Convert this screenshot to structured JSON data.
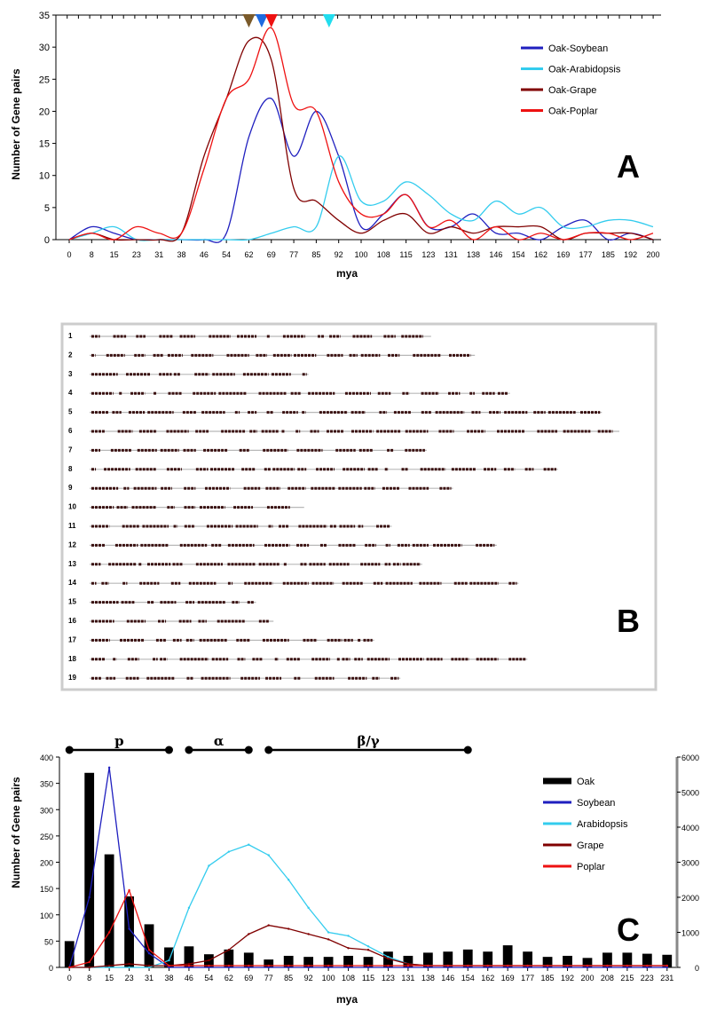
{
  "chart_data": [
    {
      "type": "line",
      "panel_label": "A",
      "xlabel": "mya",
      "ylabel": "Number of Gene pairs",
      "ylim": [
        0,
        35
      ],
      "yticks": [
        "0",
        "5",
        "10",
        "15",
        "20",
        "25",
        "30",
        "35"
      ],
      "categories": [
        "0",
        "8",
        "15",
        "23",
        "31",
        "38",
        "46",
        "54",
        "62",
        "69",
        "77",
        "85",
        "92",
        "100",
        "108",
        "115",
        "123",
        "131",
        "138",
        "146",
        "154",
        "162",
        "169",
        "177",
        "185",
        "192",
        "200"
      ],
      "legend_position": "top-right",
      "series": [
        {
          "name": "Oak-Soybean",
          "color": "#1f1fbf",
          "values": [
            0,
            2,
            1,
            0,
            0,
            0,
            0,
            1,
            16,
            22,
            13,
            20,
            13,
            2,
            4,
            7,
            2,
            2,
            4,
            1,
            1,
            0,
            2,
            3,
            0,
            1,
            0
          ]
        },
        {
          "name": "Oak-Arabidopsis",
          "color": "#33ccee",
          "values": [
            0,
            1,
            2,
            0,
            0,
            0,
            0,
            0,
            0,
            1,
            2,
            2,
            13,
            6,
            6,
            9,
            7,
            4,
            3,
            6,
            4,
            5,
            2,
            2,
            3,
            3,
            2
          ]
        },
        {
          "name": "Oak-Grape",
          "color": "#800000",
          "values": [
            0,
            1,
            0,
            0,
            0,
            1,
            13,
            22,
            31,
            28,
            8,
            6,
            3,
            1,
            3,
            4,
            1,
            2,
            1,
            2,
            2,
            2,
            0,
            1,
            1,
            1,
            0
          ]
        },
        {
          "name": "Oak-Poplar",
          "color": "#ee1111",
          "values": [
            0,
            1,
            0,
            2,
            1,
            1,
            11,
            22,
            25,
            33,
            21,
            20,
            9,
            4,
            4,
            7,
            2,
            3,
            0,
            2,
            0,
            1,
            0,
            1,
            1,
            0,
            1
          ]
        }
      ],
      "markers": [
        {
          "x": "62",
          "color": "#7a5a2a"
        },
        {
          "x": "66",
          "color": "#1e6ae0"
        },
        {
          "x": "69",
          "color": "#ee1111"
        },
        {
          "x": "89",
          "color": "#22ddee"
        }
      ]
    },
    {
      "type": "diagram",
      "panel_label": "B",
      "chromosomes": [
        "1",
        "2",
        "3",
        "4",
        "5",
        "6",
        "7",
        "8",
        "9",
        "10",
        "11",
        "12",
        "13",
        "14",
        "15",
        "16",
        "17",
        "18",
        "19"
      ],
      "relative_lengths": [
        0.78,
        0.88,
        0.5,
        0.96,
        1.17,
        1.21,
        0.77,
        1.07,
        0.83,
        0.49,
        0.69,
        0.93,
        0.76,
        0.98,
        0.38,
        0.42,
        0.65,
        1.0,
        0.71
      ]
    },
    {
      "type": "bar",
      "panel_label": "C",
      "xlabel": "mya",
      "ylabel": "Number of Gene pairs",
      "ylim": [
        0,
        400
      ],
      "yticks": [
        "0",
        "50",
        "100",
        "150",
        "200",
        "250",
        "300",
        "350",
        "400"
      ],
      "y2lim": [
        0,
        6000
      ],
      "y2ticks": [
        "0",
        "1000",
        "2000",
        "3000",
        "4000",
        "5000",
        "6000"
      ],
      "categories": [
        "0",
        "8",
        "15",
        "23",
        "31",
        "38",
        "46",
        "54",
        "62",
        "69",
        "77",
        "85",
        "92",
        "100",
        "108",
        "115",
        "123",
        "131",
        "138",
        "146",
        "154",
        "162",
        "169",
        "177",
        "185",
        "192",
        "200",
        "208",
        "215",
        "223",
        "231"
      ],
      "bars": {
        "name": "Oak",
        "color": "#000000",
        "values": [
          50,
          370,
          215,
          135,
          82,
          38,
          40,
          25,
          34,
          28,
          15,
          22,
          20,
          20,
          22,
          20,
          30,
          22,
          28,
          30,
          34,
          30,
          42,
          30,
          20,
          22,
          18,
          28,
          28,
          26,
          24
        ]
      },
      "legend_position": "top-right",
      "series": [
        {
          "name": "Soybean",
          "color": "#1f1fbf",
          "axis": "right",
          "values": [
            0,
            2000,
            5700,
            1100,
            400,
            0,
            0,
            0,
            0,
            0,
            0,
            0,
            0,
            0,
            0,
            0,
            0,
            0,
            0,
            0,
            0,
            0,
            0,
            0,
            0,
            0,
            0,
            0,
            0,
            0,
            0
          ]
        },
        {
          "name": "Arabidopsis",
          "color": "#33ccee",
          "axis": "right",
          "values": [
            0,
            0,
            0,
            0,
            0,
            200,
            1700,
            2900,
            3300,
            3500,
            3200,
            2500,
            1700,
            1000,
            900,
            600,
            300,
            100,
            50,
            50,
            50,
            50,
            50,
            50,
            50,
            50,
            50,
            50,
            50,
            50,
            50
          ]
        },
        {
          "name": "Grape",
          "color": "#800000",
          "axis": "right",
          "values": [
            0,
            0,
            50,
            100,
            50,
            50,
            100,
            200,
            500,
            950,
            1200,
            1100,
            950,
            800,
            550,
            500,
            250,
            100,
            50,
            50,
            50,
            50,
            50,
            50,
            50,
            50,
            50,
            50,
            50,
            50,
            50
          ]
        },
        {
          "name": "Poplar",
          "color": "#ee1111",
          "axis": "right",
          "values": [
            0,
            150,
            1000,
            2200,
            500,
            50,
            50,
            50,
            50,
            50,
            50,
            50,
            50,
            50,
            50,
            50,
            50,
            50,
            50,
            50,
            50,
            50,
            50,
            50,
            50,
            50,
            50,
            50,
            50,
            50,
            50
          ]
        }
      ],
      "eras": [
        {
          "label": "p",
          "from": "0",
          "to": "38"
        },
        {
          "label": "α",
          "from": "46",
          "to": "69"
        },
        {
          "label": "β/γ",
          "from": "77",
          "to": "154"
        }
      ]
    }
  ]
}
